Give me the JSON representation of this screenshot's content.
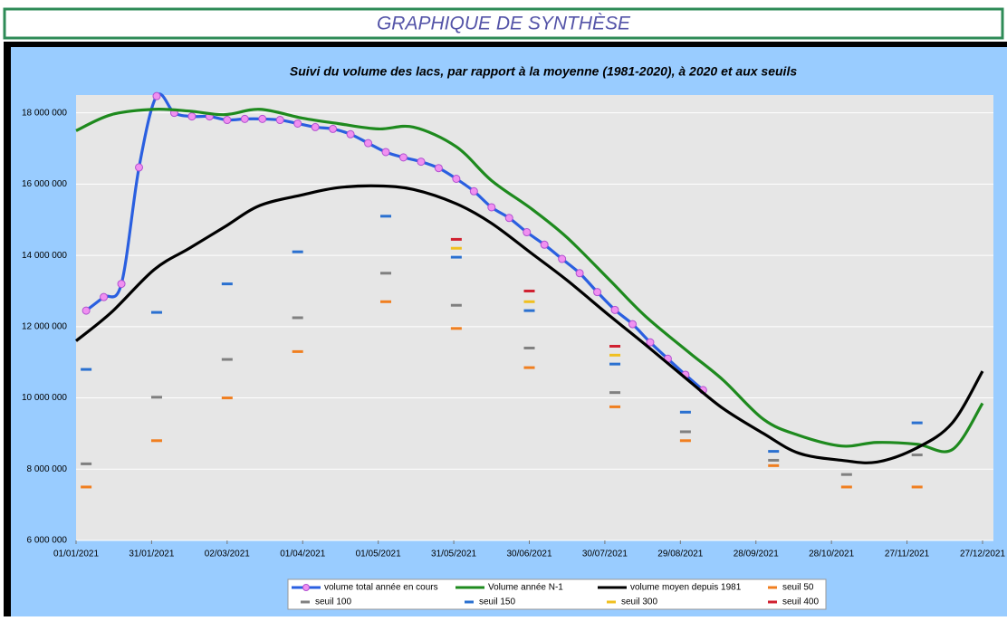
{
  "header": {
    "title": "GRAPHIQUE DE SYNTHÈSE"
  },
  "chart_data": {
    "type": "line",
    "title": "Suivi du volume des lacs, par rapport à la moyenne (1981-2020), à 2020 et aux seuils",
    "xlim": [
      "01/01/2021",
      "27/12/2021"
    ],
    "xticks": [
      "01/01/2021",
      "31/01/2021",
      "02/03/2021",
      "01/04/2021",
      "01/05/2021",
      "31/05/2021",
      "30/06/2021",
      "30/07/2021",
      "29/08/2021",
      "28/09/2021",
      "28/10/2021",
      "27/11/2021",
      "27/12/2021"
    ],
    "ylim": [
      6000000,
      18500000
    ],
    "yticks": [
      {
        "value": 6000000,
        "label": "6 000 000"
      },
      {
        "value": 8000000,
        "label": "8 000 000"
      },
      {
        "value": 10000000,
        "label": "10 000 000"
      },
      {
        "value": 12000000,
        "label": "12 000 000"
      },
      {
        "value": 14000000,
        "label": "14 000 000"
      },
      {
        "value": 16000000,
        "label": "16 000 000"
      },
      {
        "value": 18000000,
        "label": "18 000 000"
      }
    ],
    "grid": true,
    "legend": "bottom",
    "series": [
      {
        "name": "volume total année en cours",
        "color": "#2a5fe0",
        "mode": "line-markers",
        "marker_color": "#f090f0",
        "x": [
          "05/01/2021",
          "12/01/2021",
          "19/01/2021",
          "26/01/2021",
          "02/02/2021",
          "09/02/2021",
          "16/02/2021",
          "23/02/2021",
          "02/03/2021",
          "09/03/2021",
          "16/03/2021",
          "23/03/2021",
          "30/03/2021",
          "06/04/2021",
          "13/04/2021",
          "20/04/2021",
          "27/04/2021",
          "04/05/2021",
          "11/05/2021",
          "18/05/2021",
          "25/05/2021",
          "01/06/2021",
          "08/06/2021",
          "15/06/2021",
          "22/06/2021",
          "29/06/2021",
          "06/07/2021",
          "13/07/2021",
          "20/07/2021",
          "27/07/2021",
          "03/08/2021",
          "10/08/2021",
          "17/08/2021",
          "24/08/2021",
          "31/08/2021",
          "07/09/2021"
        ],
        "values": [
          12450000,
          12830000,
          13200000,
          16470000,
          18470000,
          18000000,
          17900000,
          17900000,
          17800000,
          17830000,
          17830000,
          17800000,
          17700000,
          17600000,
          17550000,
          17400000,
          17150000,
          16900000,
          16750000,
          16630000,
          16450000,
          16150000,
          15800000,
          15350000,
          15050000,
          14650000,
          14300000,
          13900000,
          13500000,
          12970000,
          12470000,
          12070000,
          11560000,
          11100000,
          10650000,
          10220000
        ]
      },
      {
        "name": "Volume année N-1",
        "color": "#1e8a1e",
        "mode": "line",
        "x": [
          "01/01/2021",
          "15/01/2021",
          "01/02/2021",
          "15/02/2021",
          "01/03/2021",
          "15/03/2021",
          "01/04/2021",
          "15/04/2021",
          "01/05/2021",
          "15/05/2021",
          "01/06/2021",
          "15/06/2021",
          "01/07/2021",
          "15/07/2021",
          "01/08/2021",
          "15/08/2021",
          "01/09/2021",
          "15/09/2021",
          "01/10/2021",
          "15/10/2021",
          "01/11/2021",
          "15/11/2021",
          "01/12/2021",
          "15/12/2021",
          "27/12/2021"
        ],
        "values": [
          17500000,
          17950000,
          18100000,
          18050000,
          17950000,
          18100000,
          17850000,
          17700000,
          17550000,
          17600000,
          17050000,
          16100000,
          15300000,
          14500000,
          13300000,
          12300000,
          11300000,
          10500000,
          9400000,
          8950000,
          8650000,
          8750000,
          8700000,
          8550000,
          9850000
        ]
      },
      {
        "name": "volume moyen depuis 1981",
        "color": "#000000",
        "mode": "line",
        "x": [
          "01/01/2021",
          "15/01/2021",
          "01/02/2021",
          "15/02/2021",
          "01/03/2021",
          "15/03/2021",
          "01/04/2021",
          "15/04/2021",
          "01/05/2021",
          "15/05/2021",
          "01/06/2021",
          "15/06/2021",
          "01/07/2021",
          "15/07/2021",
          "01/08/2021",
          "15/08/2021",
          "01/09/2021",
          "15/09/2021",
          "01/10/2021",
          "15/10/2021",
          "01/11/2021",
          "15/11/2021",
          "01/12/2021",
          "15/12/2021",
          "27/12/2021"
        ],
        "values": [
          11600000,
          12400000,
          13600000,
          14200000,
          14800000,
          15400000,
          15700000,
          15900000,
          15950000,
          15850000,
          15450000,
          14900000,
          14050000,
          13300000,
          12300000,
          11500000,
          10500000,
          9700000,
          9000000,
          8450000,
          8250000,
          8200000,
          8600000,
          9300000,
          10750000
        ]
      },
      {
        "name": "seuil 50",
        "color": "#f07f20",
        "mode": "markers",
        "x": [
          "05/01/2021",
          "02/02/2021",
          "02/03/2021",
          "30/03/2021",
          "04/05/2021",
          "01/06/2021",
          "30/06/2021",
          "03/08/2021",
          "31/08/2021",
          "05/10/2021",
          "03/11/2021",
          "01/12/2021"
        ],
        "values": [
          7500000,
          8800000,
          10000000,
          11300000,
          12700000,
          11950000,
          10850000,
          9750000,
          8800000,
          8100000,
          7500000,
          7500000
        ]
      },
      {
        "name": "seuil 100",
        "color": "#808080",
        "mode": "markers",
        "x": [
          "05/01/2021",
          "02/02/2021",
          "02/03/2021",
          "30/03/2021",
          "04/05/2021",
          "01/06/2021",
          "30/06/2021",
          "03/08/2021",
          "31/08/2021",
          "05/10/2021",
          "03/11/2021",
          "01/12/2021"
        ],
        "values": [
          8150000,
          10020000,
          11080000,
          12250000,
          13500000,
          12600000,
          11400000,
          10150000,
          9050000,
          8250000,
          7850000,
          8400000
        ]
      },
      {
        "name": "seuil 150",
        "color": "#2a70d0",
        "mode": "markers",
        "x": [
          "05/01/2021",
          "02/02/2021",
          "02/03/2021",
          "30/03/2021",
          "04/05/2021",
          "01/06/2021",
          "30/06/2021",
          "03/08/2021",
          "31/08/2021",
          "05/10/2021",
          "01/12/2021"
        ],
        "values": [
          10800000,
          12400000,
          13200000,
          14100000,
          15100000,
          13950000,
          12450000,
          10950000,
          9600000,
          8500000,
          9300000
        ]
      },
      {
        "name": "seuil 300",
        "color": "#f0c020",
        "mode": "markers",
        "x": [
          "01/06/2021",
          "30/06/2021",
          "03/08/2021"
        ],
        "values": [
          14200000,
          12700000,
          11200000
        ]
      },
      {
        "name": "seuil 400",
        "color": "#d02030",
        "mode": "markers",
        "x": [
          "01/06/2021",
          "30/06/2021",
          "03/08/2021"
        ],
        "values": [
          14450000,
          13000000,
          11450000
        ]
      }
    ]
  }
}
